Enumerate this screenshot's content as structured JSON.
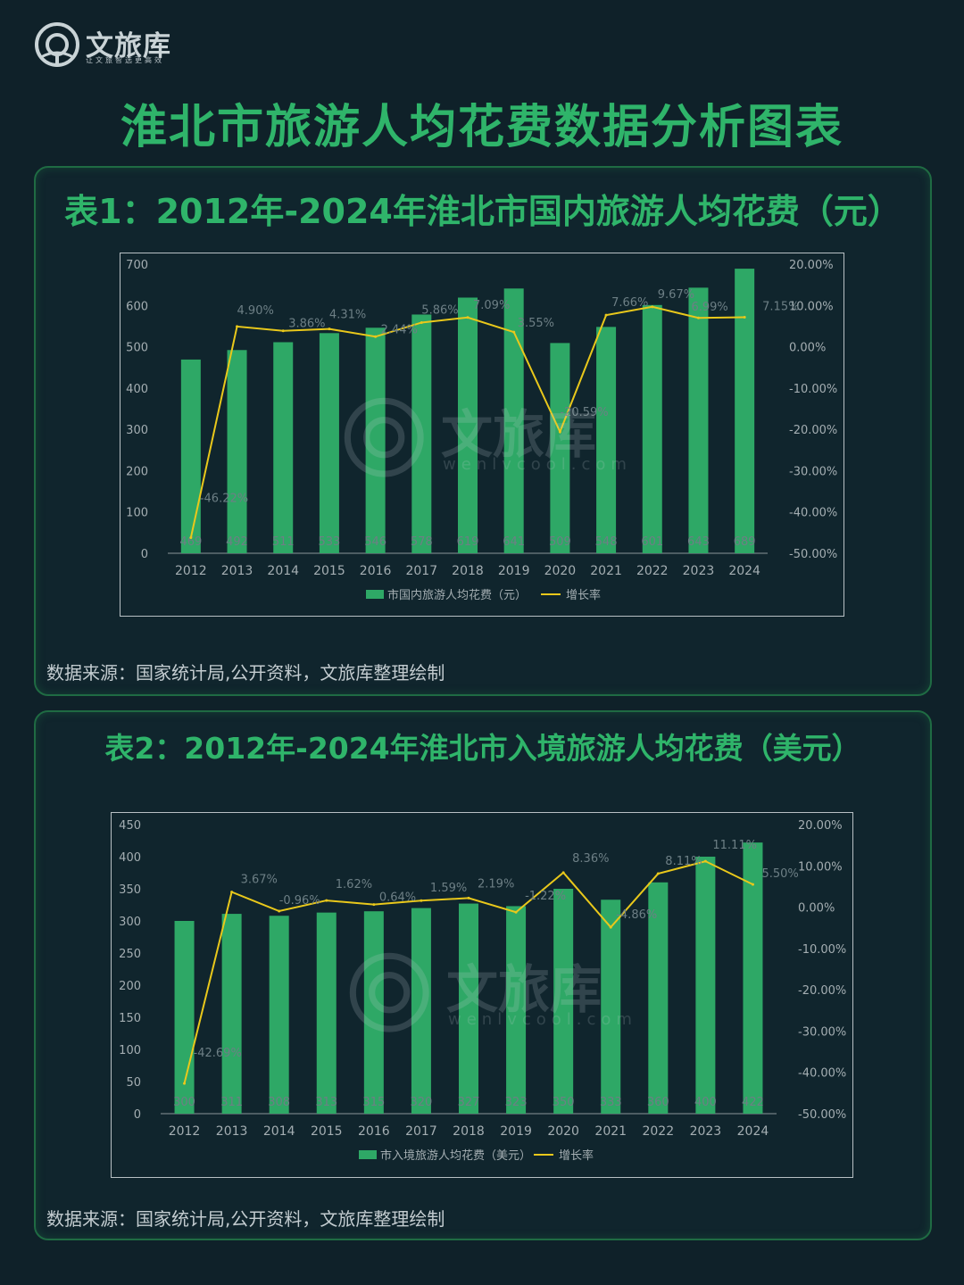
{
  "brand": {
    "name": "文旅库",
    "slogan": "让文旅智选更高效",
    "watermark_name": "文旅库",
    "watermark_url": "wenlvcool.com"
  },
  "page_title": "淮北市旅游人均花费数据分析图表",
  "charts": [
    {
      "panel_title": "表1：2012年-2024年淮北市国内旅游人均花费（元）",
      "source": "数据来源：国家统计局,公开资料，文旅库整理绘制"
    },
    {
      "panel_title": "表2：2012年-2024年淮北市入境旅游人均花费（美元）",
      "source": "数据来源：国家统计局,公开资料，文旅库整理绘制"
    }
  ],
  "colors": {
    "bar": "#2ea866",
    "line": "#e9c81b",
    "title": "#2fb46a",
    "axis_text": "#a4aeb2"
  },
  "chart_data": [
    {
      "type": "bar",
      "categories": [
        "2012",
        "2013",
        "2014",
        "2015",
        "2016",
        "2017",
        "2018",
        "2019",
        "2020",
        "2021",
        "2022",
        "2023",
        "2024"
      ],
      "series": [
        {
          "name": "市国内旅游人均花费（元）",
          "type": "bar",
          "axis": "left",
          "values": [
            469,
            492,
            511,
            533,
            546,
            578,
            619,
            641,
            509,
            548,
            601,
            643,
            689
          ]
        },
        {
          "name": "增长率",
          "type": "line",
          "axis": "right",
          "values": [
            -46.22,
            4.9,
            3.86,
            4.31,
            2.44,
            5.86,
            7.09,
            3.55,
            -20.59,
            7.66,
            9.67,
            6.99,
            7.15
          ],
          "labels": [
            "-46.22%",
            "4.90%",
            "3.86%",
            "4.31%",
            "2.44%",
            "5.86%",
            "7.09%",
            "3.55%",
            "-20.59%",
            "7.66%",
            "9.67%",
            "6.99%",
            "7.15%"
          ]
        }
      ],
      "left_axis": {
        "min": 0,
        "max": 700,
        "ticks": [
          "0",
          "100",
          "200",
          "300",
          "400",
          "500",
          "600",
          "700"
        ]
      },
      "right_axis": {
        "min": -50,
        "max": 20,
        "ticks": [
          "-50.00%",
          "-40.00%",
          "-30.00%",
          "-20.00%",
          "-10.00%",
          "0.00%",
          "10.00%",
          "20.00%"
        ]
      },
      "legend": {
        "placement": "bottom",
        "bar_label": "市国内旅游人均花费（元）",
        "line_label": "增长率"
      },
      "grid": false
    },
    {
      "type": "bar",
      "categories": [
        "2012",
        "2013",
        "2014",
        "2015",
        "2016",
        "2017",
        "2018",
        "2019",
        "2020",
        "2021",
        "2022",
        "2023",
        "2024"
      ],
      "series": [
        {
          "name": "市入境旅游人均花费（美元）",
          "type": "bar",
          "axis": "left",
          "values": [
            300,
            311,
            308,
            313,
            315,
            320,
            327,
            323,
            350,
            333,
            360,
            400,
            422
          ]
        },
        {
          "name": "增长率",
          "type": "line",
          "axis": "right",
          "values": [
            -42.69,
            3.67,
            -0.96,
            1.62,
            0.64,
            1.59,
            2.19,
            -1.22,
            8.36,
            -4.86,
            8.11,
            11.11,
            5.5
          ],
          "labels": [
            "-42.69%",
            "3.67%",
            "-0.96%",
            "1.62%",
            "0.64%",
            "1.59%",
            "2.19%",
            "-1.22%",
            "8.36%",
            "-4.86%",
            "8.11%",
            "11.11%",
            "5.50%"
          ]
        }
      ],
      "left_axis": {
        "min": 0,
        "max": 450,
        "ticks": [
          "0",
          "50",
          "100",
          "150",
          "200",
          "250",
          "300",
          "350",
          "400",
          "450"
        ]
      },
      "right_axis": {
        "min": -50,
        "max": 20,
        "ticks": [
          "-50.00%",
          "-40.00%",
          "-30.00%",
          "-20.00%",
          "-10.00%",
          "0.00%",
          "10.00%",
          "20.00%"
        ]
      },
      "legend": {
        "placement": "bottom",
        "bar_label": "市入境旅游人均花费（美元）",
        "line_label": "增长率"
      },
      "grid": false
    }
  ]
}
